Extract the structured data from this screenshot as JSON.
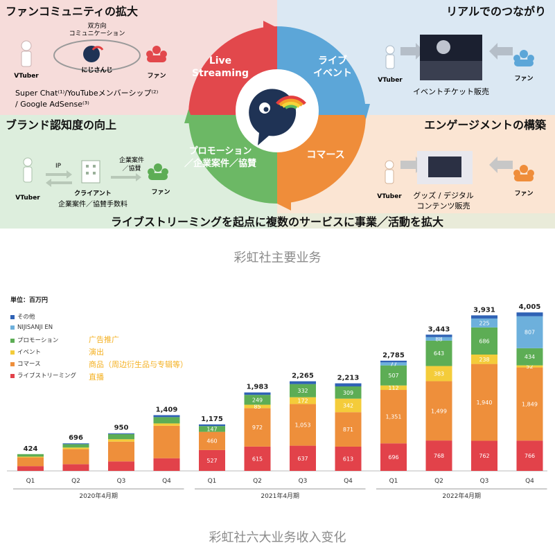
{
  "diagram": {
    "tl_title": "ファンコミュニティの拡大",
    "tr_title": "リアルでのつながり",
    "bl_title": "ブランド認知度の向上",
    "br_title": "エンゲージメントの構築",
    "bottom_banner": "ライブストリーミングを起点に複数のサービスに事業／活動を拡大",
    "q_live_1": "Live",
    "q_live_2": "Streaming",
    "q_event_1": "ライブ",
    "q_event_2": "イベント",
    "q_promo_1": "プロモーション",
    "q_promo_2": "／企業案件／協賛",
    "q_commerce": "コマース",
    "bidir_1": "双方向",
    "bidir_2": "コミュニケーション",
    "nijisanji_label": "にじさんじ",
    "vtuber": "VTuber",
    "fan": "ファン",
    "superchat_1": "Super Chat⁽¹⁾/YouTubeメンバーシップ⁽²⁾",
    "superchat_2": "/ Google AdSense⁽³⁾",
    "event_ticket": "イベントチケット販売",
    "ip": "IP",
    "client": "クライアント",
    "corp_fee": "企業案件／協賛手数料",
    "corp_case_1": "企業案件",
    "corp_case_2": "／協賛",
    "goods_1": "グッズ / デジタル",
    "goods_2": "コンテンツ販売"
  },
  "caption_top": "彩虹社主要业务",
  "caption_bottom": "彩虹社六大业务收入变化",
  "colors": {
    "live": "#e2424a",
    "commerce": "#ee8f3b",
    "event": "#f4cc3a",
    "promotion": "#5dad55",
    "en": "#6db0dc",
    "other": "#2f62b5"
  },
  "chart_data": {
    "type": "bar",
    "stacked": true,
    "unit_label": "単位：百万円",
    "legend": [
      "その他",
      "NIJISANJI EN",
      "プロモーション",
      "イベント",
      "コマース",
      "ライブストリーミング"
    ],
    "annotations": [
      "广告推广",
      "演出",
      "商品（周边衍生品与专辑等）",
      "直播"
    ],
    "categories": [
      "Q1",
      "Q2",
      "Q3",
      "Q4",
      "Q1",
      "Q2",
      "Q3",
      "Q4",
      "Q1",
      "Q2",
      "Q3",
      "Q4"
    ],
    "groups": [
      {
        "label": "2020年4月期",
        "from": 0,
        "to": 3
      },
      {
        "label": "2021年4月期",
        "from": 4,
        "to": 7
      },
      {
        "label": "2022年4月期",
        "from": 8,
        "to": 11
      }
    ],
    "totals": [
      424,
      696,
      950,
      1409,
      1175,
      1983,
      2265,
      2213,
      2785,
      3443,
      3931,
      4005
    ],
    "total_labels": [
      "424",
      "696",
      "950",
      "1,409",
      "1,175",
      "1,983",
      "2,265",
      "2,213",
      "2,785",
      "3,443",
      "3,931",
      "4,005"
    ],
    "ylim": [
      0,
      4200
    ],
    "series": [
      {
        "name": "ライブストリーミング",
        "values": [
          120,
          170,
          240,
          320,
          527,
          615,
          637,
          613,
          696,
          768,
          762,
          766
        ],
        "labels": [
          "",
          "",
          "",
          "",
          "527",
          "615",
          "637",
          "613",
          "696",
          "768",
          "762",
          "766"
        ]
      },
      {
        "name": "コマース",
        "values": [
          220,
          380,
          500,
          820,
          460,
          972,
          1053,
          871,
          1351,
          1499,
          1940,
          1849
        ],
        "labels": [
          "",
          "",
          "",
          "",
          "460",
          "972",
          "1,053",
          "871",
          "1,351",
          "1,499",
          "1,940",
          "1,849"
        ]
      },
      {
        "name": "イベント",
        "values": [
          20,
          40,
          60,
          60,
          0,
          85,
          172,
          342,
          112,
          383,
          238,
          52
        ],
        "labels": [
          "",
          "",
          "",
          "",
          "",
          "85",
          "172",
          "342",
          "112",
          "383",
          "238",
          "52"
        ]
      },
      {
        "name": "プロモーション",
        "values": [
          64,
          86,
          130,
          159,
          147,
          249,
          332,
          309,
          507,
          643,
          686,
          434
        ],
        "labels": [
          "",
          "",
          "",
          "",
          "147",
          "249",
          "332",
          "309",
          "507",
          "643",
          "686",
          "434"
        ]
      },
      {
        "name": "NIJISANJI EN",
        "values": [
          0,
          0,
          0,
          0,
          0,
          0,
          0,
          0,
          77,
          88,
          225,
          807
        ],
        "labels": [
          "",
          "",
          "",
          "",
          "",
          "",
          "",
          "",
          "77",
          "88",
          "225",
          "807"
        ]
      },
      {
        "name": "その他",
        "values": [
          0,
          20,
          20,
          50,
          41,
          62,
          71,
          78,
          42,
          62,
          80,
          97
        ],
        "labels": [
          "",
          "",
          "",
          "",
          "",
          "",
          "",
          "",
          "",
          "",
          "",
          ""
        ]
      }
    ]
  }
}
